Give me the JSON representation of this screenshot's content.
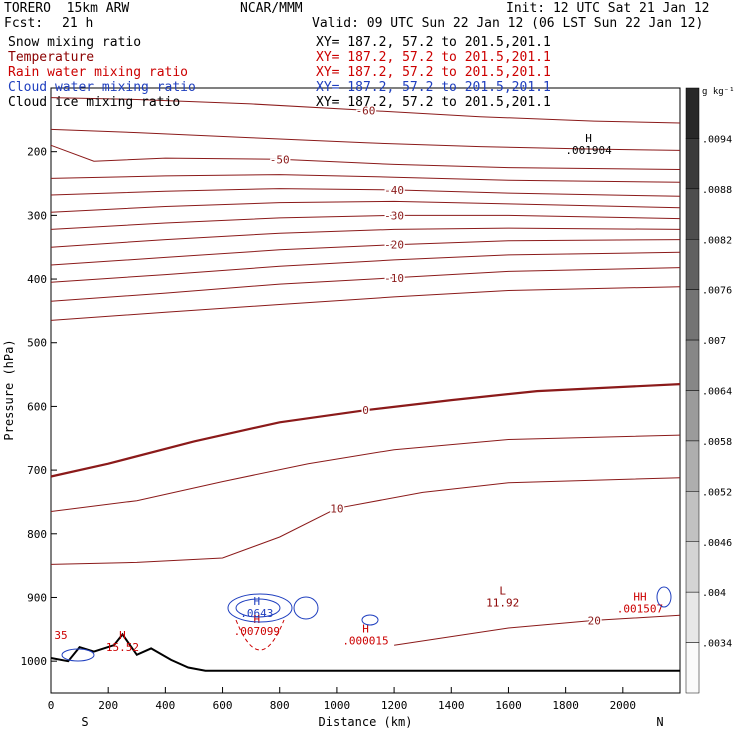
{
  "header": {
    "model": "TORERO  15km ARW",
    "center": "NCAR/MMM",
    "init": "Init: 12 UTC Sat 21 Jan 12",
    "fcst_label": "Fcst:",
    "fcst_value": "21 h",
    "valid": "Valid: 09 UTC Sun 22 Jan 12 (06 LST Sun 22 Jan 12)"
  },
  "fields": [
    {
      "name": "Snow mixing ratio",
      "xy": "XY= 187.2, 57.2 to 201.5,201.1",
      "color": "#000000"
    },
    {
      "name": "Temperature",
      "xy": "XY= 187.2, 57.2 to 201.5,201.1",
      "color": "#8b0000"
    },
    {
      "name": "Rain water mixing ratio",
      "xy": "XY= 187.2, 57.2 to 201.5,201.1",
      "color": "#cc0000"
    },
    {
      "name": "Cloud water mixing ratio",
      "xy": "XY= 187.2, 57.2 to 201.5,201.1",
      "color": "#1f3fbf"
    },
    {
      "name": "Cloud ice mixing ratio",
      "xy": "XY= 187.2, 57.2 to 201.5,201.1",
      "color": "#000000"
    }
  ],
  "chart_data": {
    "type": "cross-section contour",
    "xlabel": "Distance (km)",
    "ylabel": "Pressure (hPa)",
    "xlim": [
      0,
      2200
    ],
    "ylim": [
      1050,
      100
    ],
    "x_ticks": [
      0,
      200,
      400,
      600,
      800,
      1000,
      1200,
      1400,
      1600,
      1800,
      2000
    ],
    "y_ticks": [
      200,
      300,
      400,
      500,
      600,
      700,
      800,
      900,
      1000
    ],
    "direction_left": "S",
    "direction_right": "N",
    "colorbar": {
      "unit": "g kg⁻¹",
      "labels": [
        ".0094",
        ".0088",
        ".0082",
        ".0076",
        ".007",
        ".0064",
        ".0058",
        ".0052",
        ".0046",
        ".004",
        ".0034"
      ],
      "levels": 12
    },
    "temperature_contours": [
      {
        "value": -60,
        "label": "-60",
        "points": [
          [
            0,
            115
          ],
          [
            300,
            118
          ],
          [
            700,
            125
          ],
          [
            1100,
            135
          ],
          [
            1500,
            145
          ],
          [
            1900,
            152
          ],
          [
            2200,
            155
          ]
        ]
      },
      {
        "value": -55,
        "label": "",
        "points": [
          [
            0,
            165
          ],
          [
            300,
            170
          ],
          [
            700,
            178
          ],
          [
            1100,
            186
          ],
          [
            1500,
            192
          ],
          [
            1900,
            196
          ],
          [
            2200,
            198
          ]
        ]
      },
      {
        "value": -50,
        "label": "-50",
        "points": [
          [
            0,
            190
          ],
          [
            150,
            215
          ],
          [
            400,
            210
          ],
          [
            800,
            212
          ],
          [
            1200,
            220
          ],
          [
            1600,
            225
          ],
          [
            2200,
            228
          ]
        ]
      },
      {
        "value": -45,
        "label": "",
        "points": [
          [
            0,
            242
          ],
          [
            400,
            238
          ],
          [
            800,
            236
          ],
          [
            1200,
            240
          ],
          [
            1600,
            245
          ],
          [
            2200,
            248
          ]
        ]
      },
      {
        "value": -40,
        "label": "-40",
        "points": [
          [
            0,
            268
          ],
          [
            400,
            262
          ],
          [
            800,
            258
          ],
          [
            1200,
            260
          ],
          [
            1600,
            265
          ],
          [
            2200,
            270
          ]
        ]
      },
      {
        "value": -35,
        "label": "",
        "points": [
          [
            0,
            295
          ],
          [
            400,
            286
          ],
          [
            800,
            280
          ],
          [
            1200,
            278
          ],
          [
            1600,
            282
          ],
          [
            2200,
            288
          ]
        ]
      },
      {
        "value": -30,
        "label": "-30",
        "points": [
          [
            0,
            322
          ],
          [
            400,
            312
          ],
          [
            800,
            304
          ],
          [
            1200,
            300
          ],
          [
            1600,
            300
          ],
          [
            2200,
            305
          ]
        ]
      },
      {
        "value": -25,
        "label": "",
        "points": [
          [
            0,
            350
          ],
          [
            400,
            338
          ],
          [
            800,
            328
          ],
          [
            1200,
            322
          ],
          [
            1600,
            320
          ],
          [
            2200,
            322
          ]
        ]
      },
      {
        "value": -20,
        "label": "-20",
        "points": [
          [
            0,
            378
          ],
          [
            400,
            366
          ],
          [
            800,
            354
          ],
          [
            1200,
            346
          ],
          [
            1600,
            340
          ],
          [
            2200,
            338
          ]
        ]
      },
      {
        "value": -15,
        "label": "",
        "points": [
          [
            0,
            405
          ],
          [
            400,
            393
          ],
          [
            800,
            380
          ],
          [
            1200,
            370
          ],
          [
            1600,
            362
          ],
          [
            2200,
            358
          ]
        ]
      },
      {
        "value": -10,
        "label": "-10",
        "points": [
          [
            0,
            435
          ],
          [
            400,
            422
          ],
          [
            800,
            408
          ],
          [
            1200,
            398
          ],
          [
            1600,
            388
          ],
          [
            2200,
            382
          ]
        ]
      },
      {
        "value": -5,
        "label": "",
        "points": [
          [
            0,
            465
          ],
          [
            400,
            452
          ],
          [
            800,
            440
          ],
          [
            1200,
            428
          ],
          [
            1600,
            418
          ],
          [
            2200,
            412
          ]
        ]
      },
      {
        "value": 0,
        "label": "0",
        "points": [
          [
            0,
            710
          ],
          [
            200,
            690
          ],
          [
            500,
            655
          ],
          [
            800,
            625
          ],
          [
            1100,
            606
          ],
          [
            1400,
            590
          ],
          [
            1700,
            576
          ],
          [
            2200,
            565
          ]
        ]
      },
      {
        "value": 5,
        "label": "",
        "points": [
          [
            0,
            765
          ],
          [
            300,
            748
          ],
          [
            600,
            718
          ],
          [
            900,
            690
          ],
          [
            1200,
            668
          ],
          [
            1600,
            652
          ],
          [
            2200,
            645
          ]
        ]
      },
      {
        "value": 10,
        "label": "10",
        "points": [
          [
            0,
            848
          ],
          [
            300,
            845
          ],
          [
            600,
            838
          ],
          [
            800,
            805
          ],
          [
            1000,
            760
          ],
          [
            1300,
            735
          ],
          [
            1600,
            720
          ],
          [
            2200,
            712
          ]
        ]
      },
      {
        "value": 20,
        "label": "20",
        "points": [
          [
            1200,
            975
          ],
          [
            1600,
            948
          ],
          [
            1900,
            936
          ],
          [
            2200,
            928
          ]
        ]
      }
    ],
    "annotations": [
      {
        "text": "H",
        "sub": ".001904",
        "x": 1880,
        "p": 185,
        "color": "#000000"
      },
      {
        "text": "H",
        "sub": ".0643",
        "x": 720,
        "p": 912,
        "color": "#1f3fbf"
      },
      {
        "text": "H",
        "sub": ".007099",
        "x": 720,
        "p": 940,
        "color": "#cc0000"
      },
      {
        "text": "H",
        "sub": ".000015",
        "x": 1100,
        "p": 955,
        "color": "#cc0000"
      },
      {
        "text": "L",
        "sub": "11.92",
        "x": 1580,
        "p": 895,
        "color": "#8b0000"
      },
      {
        "text": "H",
        "sub": "15.52",
        "x": 250,
        "p": 965,
        "color": "#cc0000"
      },
      {
        "text": "35",
        "sub": "",
        "x": 35,
        "p": 965,
        "color": "#cc0000"
      },
      {
        "text": "HH",
        "sub": ".001507",
        "x": 2060,
        "p": 905,
        "color": "#cc0000"
      }
    ],
    "terrain": [
      [
        0,
        995
      ],
      [
        60,
        1000
      ],
      [
        100,
        978
      ],
      [
        150,
        985
      ],
      [
        220,
        975
      ],
      [
        250,
        958
      ],
      [
        300,
        990
      ],
      [
        350,
        980
      ],
      [
        420,
        998
      ],
      [
        480,
        1010
      ],
      [
        540,
        1015
      ],
      [
        1000,
        1015
      ],
      [
        1600,
        1015
      ],
      [
        2200,
        1015
      ]
    ]
  }
}
